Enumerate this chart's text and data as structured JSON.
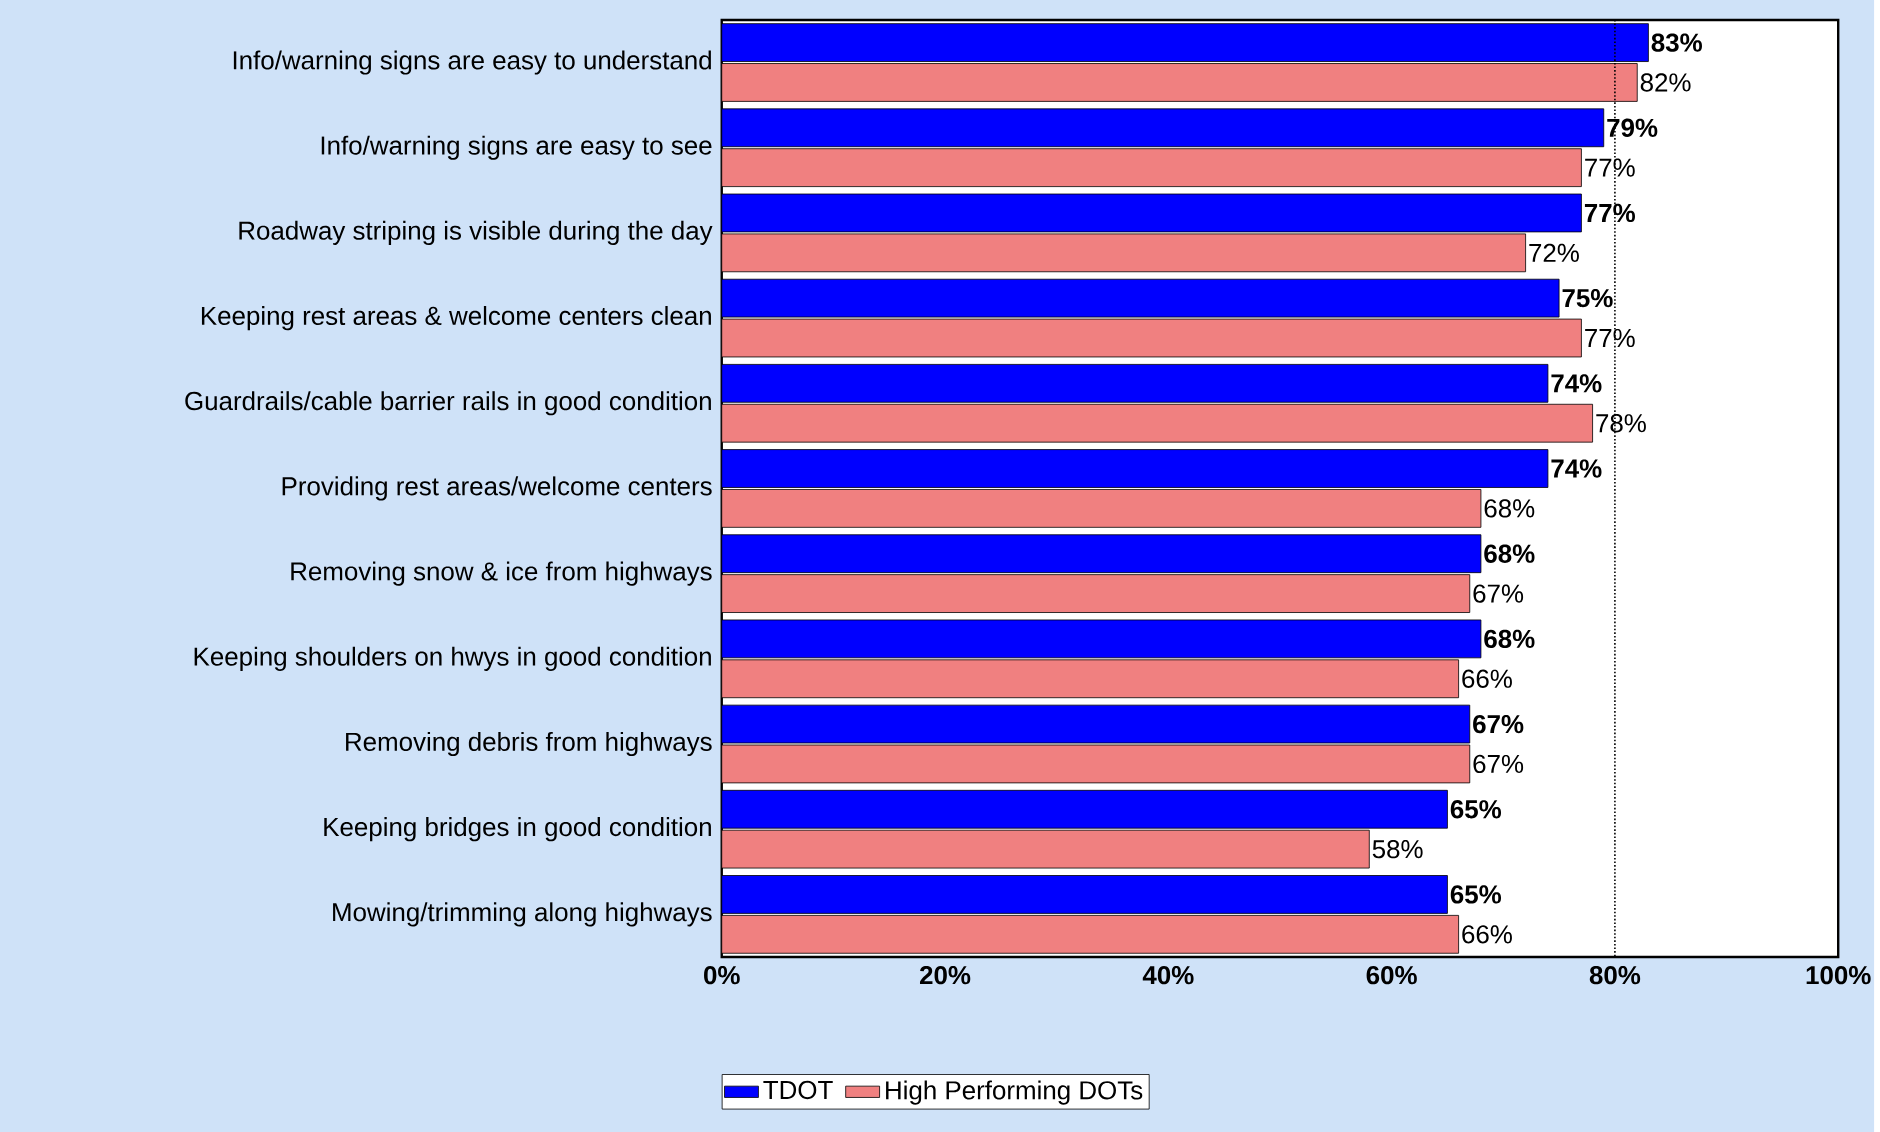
{
  "chart_data": {
    "type": "bar",
    "orientation": "horizontal",
    "categories": [
      "Info/warning signs are easy to understand",
      "Info/warning signs are easy to see",
      "Roadway striping is visible during the day",
      "Keeping rest areas & welcome centers clean",
      "Guardrails/cable barrier rails in good condition",
      "Providing rest areas/welcome centers",
      "Removing snow & ice from highways",
      "Keeping shoulders on hwys in good condition",
      "Removing debris from highways",
      "Keeping bridges in good condition",
      "Mowing/trimming along highways"
    ],
    "series": [
      {
        "name": "TDOT",
        "color": "#0000ff",
        "values": [
          83,
          79,
          77,
          75,
          74,
          74,
          68,
          68,
          67,
          65,
          65
        ],
        "value_labels": [
          "83%",
          "79%",
          "77%",
          "75%",
          "74%",
          "74%",
          "68%",
          "68%",
          "67%",
          "65%",
          "65%"
        ]
      },
      {
        "name": "High Performing DOTs",
        "color": "#f08080",
        "values": [
          82,
          77,
          72,
          77,
          78,
          68,
          67,
          66,
          67,
          58,
          66
        ],
        "value_labels": [
          "82%",
          "77%",
          "72%",
          "77%",
          "78%",
          "68%",
          "67%",
          "66%",
          "67%",
          "58%",
          "66%"
        ]
      }
    ],
    "xlim": [
      0,
      100
    ],
    "xticks": [
      {
        "value": 0,
        "label": "0%"
      },
      {
        "value": 20,
        "label": "20%"
      },
      {
        "value": 40,
        "label": "40%"
      },
      {
        "value": 60,
        "label": "60%"
      },
      {
        "value": 80,
        "label": "80%"
      },
      {
        "value": 100,
        "label": "100%"
      }
    ],
    "ref_lines": [
      {
        "axis": "x",
        "value": 80,
        "line_style": "dotted",
        "color": "#000000"
      }
    ],
    "legend": "bottom"
  }
}
